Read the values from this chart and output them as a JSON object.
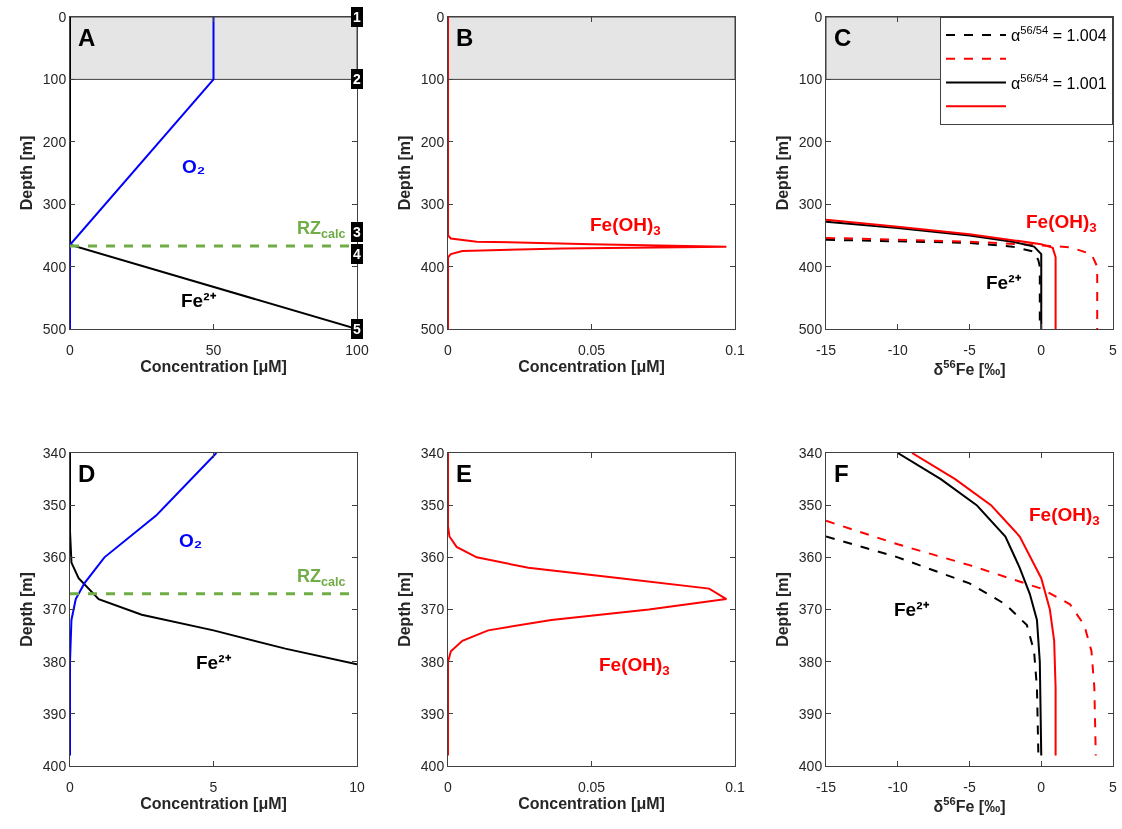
{
  "chart_data": [
    {
      "type": "line",
      "xlabel": "Concentration [μM]",
      "ylabel": "Depth [m]",
      "xlim": [
        0,
        100
      ],
      "xticks": [
        0,
        50,
        100
      ],
      "ylim": [
        500,
        0
      ],
      "yticks": [
        0,
        100,
        200,
        300,
        400,
        500
      ],
      "series": [
        {
          "color": "#000000",
          "x": [
            0,
            0,
            100
          ],
          "values": [
            0,
            365,
            500
          ]
        },
        {
          "color": "#0000ff",
          "x": [
            50,
            50,
            0,
            0
          ],
          "values": [
            0,
            100,
            365,
            500
          ]
        }
      ],
      "bands": [
        {
          "axis": "y",
          "from": 0,
          "to": 100,
          "color": "#e5e5e5"
        }
      ],
      "ref_lines": [
        {
          "axis": "y",
          "value": 367,
          "label": "RZ$_{calc}$",
          "color": "#70ad47",
          "line_style": "dashed"
        }
      ],
      "annotations": [
        "A",
        "O₂",
        "Fe²⁺",
        "1",
        "2",
        "3",
        "4",
        "5"
      ]
    },
    {
      "type": "line",
      "xlabel": "Concentration [μM]",
      "ylabel": "Depth [m]",
      "xlim": [
        0,
        0.1
      ],
      "xticks": [
        0,
        0.05,
        0.1
      ],
      "ylim": [
        500,
        0
      ],
      "yticks": [
        0,
        100,
        200,
        300,
        400,
        500
      ],
      "series": [
        {
          "color": "#ff0000",
          "x": [
            0,
            0,
            0.001,
            0.01,
            0.05,
            0.097,
            0.04,
            0.005,
            0.001,
            0,
            0
          ],
          "values": [
            0,
            350,
            355,
            360,
            364,
            368,
            371,
            375,
            380,
            385,
            500
          ]
        }
      ],
      "bands": [
        {
          "axis": "y",
          "from": 0,
          "to": 100,
          "color": "#e5e5e5"
        }
      ],
      "annotations": [
        "B",
        "Fe(OH)$_{3}$"
      ]
    },
    {
      "type": "line",
      "xlabel": "δ$^{56}$Fe [‰]",
      "ylabel": "Depth [m]",
      "xlim": [
        -15,
        5
      ],
      "xticks": [
        -15,
        -10,
        -5,
        0,
        5
      ],
      "ylim": [
        500,
        0
      ],
      "yticks": [
        0,
        100,
        200,
        300,
        400,
        500
      ],
      "legend": "top right",
      "series": [
        {
          "name": "α$^{56/54}$ = 1.004",
          "color": "#000000",
          "line_style": "dashed",
          "x": [
            -15,
            -5,
            -2,
            -0.5,
            -0.2,
            -0.1,
            -0.1
          ],
          "values": [
            357,
            362,
            368,
            376,
            390,
            400,
            500
          ]
        },
        {
          "color": "#ff0000",
          "line_style": "dashed",
          "x": [
            -15,
            -5,
            0,
            2,
            3.5,
            3.9,
            3.9
          ],
          "values": [
            354,
            360,
            366,
            369,
            380,
            400,
            500
          ]
        },
        {
          "name": "α$^{56/54}$ = 1.001",
          "color": "#000000",
          "line_style": "solid",
          "x": [
            -15,
            -10,
            -5,
            -2,
            -0.5,
            0,
            0
          ],
          "values": [
            328,
            338,
            350,
            360,
            368,
            380,
            500
          ]
        },
        {
          "color": "#ff0000",
          "line_style": "solid",
          "x": [
            -15,
            -10,
            -5,
            0,
            0.8,
            1,
            1
          ],
          "values": [
            325,
            336,
            348,
            364,
            370,
            385,
            500
          ]
        }
      ],
      "bands": [
        {
          "axis": "y",
          "from": 0,
          "to": 100,
          "color": "#e5e5e5"
        }
      ],
      "annotations": [
        "C",
        "Fe(OH)$_{3}$",
        "Fe²⁺"
      ]
    },
    {
      "type": "line",
      "xlabel": "Concentration [μM]",
      "ylabel": "Depth [m]",
      "xlim": [
        0,
        10
      ],
      "xticks": [
        0,
        5,
        10
      ],
      "ylim": [
        400,
        340
      ],
      "yticks": [
        340,
        350,
        360,
        370,
        380,
        390,
        400
      ],
      "series": [
        {
          "color": "#000000",
          "x": [
            0,
            0,
            0.05,
            0.3,
            1,
            2.5,
            5,
            7.5,
            10
          ],
          "values": [
            340,
            355,
            361,
            364,
            368,
            371,
            374,
            377.5,
            380.5
          ]
        },
        {
          "color": "#0000ff",
          "x": [
            5.1,
            3,
            1.2,
            0.5,
            0.2,
            0.05,
            0,
            0
          ],
          "values": [
            340,
            352,
            360,
            365,
            368,
            372,
            380,
            398
          ]
        }
      ],
      "ref_lines": [
        {
          "axis": "y",
          "value": 367,
          "label": "RZ$_{calc}$",
          "color": "#70ad47",
          "line_style": "dashed"
        }
      ],
      "annotations": [
        "D",
        "O₂",
        "Fe²⁺"
      ]
    },
    {
      "type": "line",
      "xlabel": "Concentration [μM]",
      "ylabel": "Depth [m]",
      "xlim": [
        0,
        0.1
      ],
      "xticks": [
        0,
        0.05,
        0.1
      ],
      "ylim": [
        400,
        340
      ],
      "yticks": [
        340,
        350,
        360,
        370,
        380,
        390,
        400
      ],
      "series": [
        {
          "color": "#ff0000",
          "x": [
            0,
            0,
            0.0005,
            0.003,
            0.01,
            0.028,
            0.06,
            0.091,
            0.097,
            0.07,
            0.036,
            0.014,
            0.005,
            0.001,
            0,
            0
          ],
          "values": [
            340,
            354,
            356,
            358,
            360,
            362,
            364,
            366,
            368,
            370,
            372,
            374,
            376,
            378,
            380,
            398
          ]
        }
      ],
      "annotations": [
        "E",
        "Fe(OH)$_{3}$"
      ]
    },
    {
      "type": "line",
      "xlabel": "δ$^{56}$Fe [‰]",
      "ylabel": "Depth [m]",
      "xlim": [
        -15,
        5
      ],
      "xticks": [
        -15,
        -10,
        -5,
        0,
        5
      ],
      "ylim": [
        400,
        340
      ],
      "yticks": [
        340,
        350,
        360,
        370,
        380,
        390,
        400
      ],
      "series": [
        {
          "color": "#000000",
          "line_style": "dashed",
          "x": [
            -15,
            -10,
            -5,
            -2.5,
            -1,
            -0.5,
            -0.3,
            -0.2
          ],
          "values": [
            356,
            360,
            365,
            369,
            373,
            378,
            385,
            398
          ]
        },
        {
          "color": "#ff0000",
          "line_style": "dashed",
          "x": [
            -15,
            -10,
            -5,
            0,
            2,
            3,
            3.5,
            3.7,
            3.8
          ],
          "values": [
            353,
            357.5,
            361.5,
            366,
            369,
            373,
            378,
            385,
            398
          ]
        },
        {
          "color": "#000000",
          "line_style": "solid",
          "x": [
            -10,
            -7,
            -4.5,
            -2.5,
            -1.5,
            -0.8,
            -0.3,
            -0.1,
            0
          ],
          "values": [
            340,
            345,
            350,
            356,
            362,
            367,
            372,
            380,
            398
          ]
        },
        {
          "color": "#ff0000",
          "line_style": "solid",
          "x": [
            -9,
            -6,
            -3.5,
            -1.5,
            0,
            0.6,
            0.9,
            1,
            1
          ],
          "values": [
            340,
            345,
            350,
            356,
            364,
            370,
            376,
            385,
            398
          ]
        }
      ],
      "annotations": [
        "F",
        "Fe(OH)$_{3}$",
        "Fe²⁺"
      ]
    }
  ]
}
